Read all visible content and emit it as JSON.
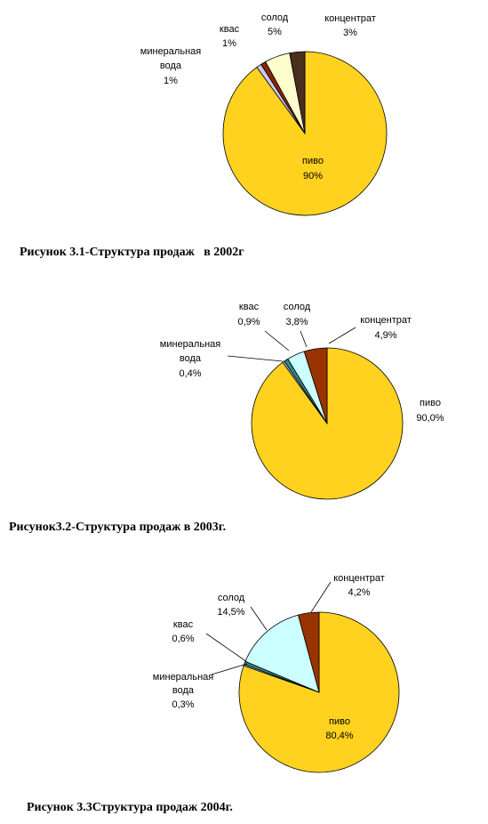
{
  "captions": {
    "fig1": "Рисунок 3.1-Структура продаж   в 2002г",
    "fig2": "Рисунок3.2-Структура продаж в 2003г.",
    "fig3": "Рисунок 3.3Структура продаж 2004г."
  },
  "colors": {
    "pivo": "#FFD21F",
    "mineral": "#C8C8F0",
    "kvas": "#8B2500",
    "solod": "#FFFFCC",
    "concentrate": "#4A2E1E",
    "kvas2": "#2E8B8B",
    "solod2": "#CCFFFF",
    "concentrate2": "#993300"
  },
  "chart_data": [
    {
      "type": "pie",
      "title": "",
      "slices": [
        {
          "label": "пиво",
          "value": 90,
          "display": "90%"
        },
        {
          "label": "минеральная вода",
          "value": 1,
          "display": "1%"
        },
        {
          "label": "квас",
          "value": 1,
          "display": "1%"
        },
        {
          "label": "солод",
          "value": 5,
          "display": "5%"
        },
        {
          "label": "концентрат",
          "value": 3,
          "display": "3%"
        }
      ]
    },
    {
      "type": "pie",
      "title": "",
      "slices": [
        {
          "label": "пиво",
          "value": 90.0,
          "display": "90,0%"
        },
        {
          "label": "минеральная вода",
          "value": 0.4,
          "display": "0,4%"
        },
        {
          "label": "квас",
          "value": 0.9,
          "display": "0,9%"
        },
        {
          "label": "солод",
          "value": 3.8,
          "display": "3,8%"
        },
        {
          "label": "концентрат",
          "value": 4.9,
          "display": "4,9%"
        }
      ]
    },
    {
      "type": "pie",
      "title": "",
      "slices": [
        {
          "label": "пиво",
          "value": 80.4,
          "display": "80,4%"
        },
        {
          "label": "минеральная вода",
          "value": 0.3,
          "display": "0,3%"
        },
        {
          "label": "квас",
          "value": 0.6,
          "display": "0,6%"
        },
        {
          "label": "солод",
          "value": 14.5,
          "display": "14,5%"
        },
        {
          "label": "концентрат",
          "value": 4.2,
          "display": "4,2%"
        }
      ]
    }
  ]
}
